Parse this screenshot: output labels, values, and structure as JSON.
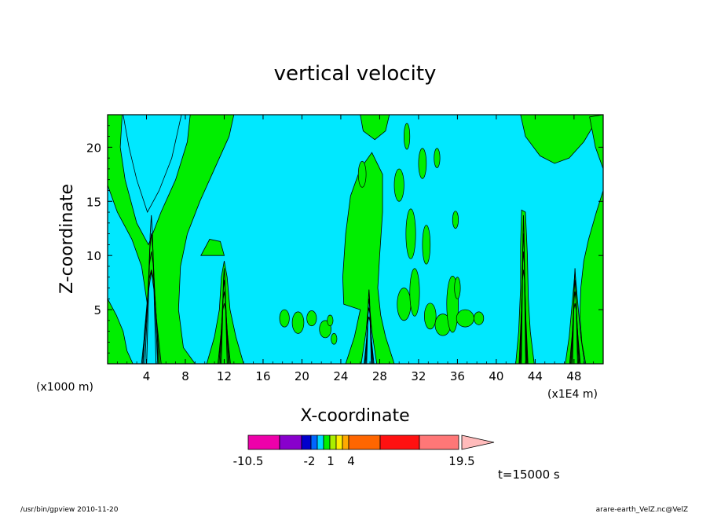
{
  "chart_data": {
    "type": "contour",
    "title": "vertical velocity",
    "xlabel": "X-coordinate",
    "ylabel": "Z-coordinate",
    "x_unit_left": "(x1000 m)",
    "x_unit_right": "(x1E4 m)",
    "xlim": [
      0,
      51
    ],
    "ylim": [
      0,
      23
    ],
    "x_ticks": [
      4,
      8,
      12,
      16,
      20,
      24,
      28,
      32,
      36,
      40,
      44,
      48
    ],
    "y_ticks": [
      5,
      10,
      15,
      20
    ],
    "background_color": "#00e8ff",
    "positive_color": "#00ee00",
    "plumes": [
      {
        "x": 4.5,
        "top": 14,
        "base_halfwidth": 2.2
      },
      {
        "x": 12,
        "top": 9,
        "base_halfwidth": 1.4
      },
      {
        "x": 26.9,
        "top": 7,
        "base_halfwidth": 1.1
      },
      {
        "x": 42.8,
        "top": 14,
        "base_halfwidth": 1.0
      },
      {
        "x": 48.1,
        "top": 9,
        "base_halfwidth": 1.2
      }
    ],
    "colorbar": {
      "colors": [
        "#ee00aa",
        "#8800cc",
        "#0000cc",
        "#0066ff",
        "#00d8ff",
        "#00ee00",
        "#aaee00",
        "#ffee00",
        "#ffaa00",
        "#ff6600",
        "#ff1111",
        "#ff7777",
        "#ffbbbb"
      ],
      "labels": [
        {
          "text": "-10.5",
          "value": -10.5
        },
        {
          "text": "-2",
          "value": -2
        },
        {
          "text": "1",
          "value": 1
        },
        {
          "text": "4",
          "value": 4
        },
        {
          "text": "19.5",
          "value": 19.5
        }
      ]
    },
    "time_label": "t=15000 s",
    "footer_left": "/usr/bin/gpview  2010-11-20",
    "footer_right": "arare-earth_VelZ.nc@VelZ"
  }
}
